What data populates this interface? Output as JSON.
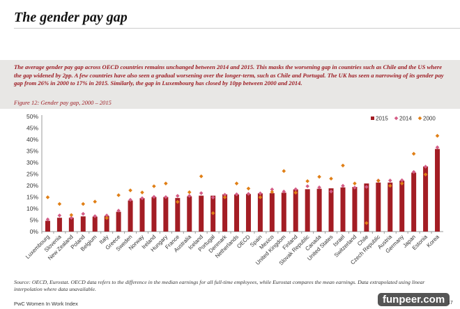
{
  "title": "The gender pay gap",
  "summary": "The average gender pay gap across OECD countries remains unchanged between 2014 and 2015. This masks the worsening gap in countries such as Chile and the US where the gap widened by 2pp. A few countries have also seen a gradual worsening over the longer-term, such as Chile and Portugal. The UK has seen a narrowing of its gender pay gap from 26% in 2000 to 17% in 2015. Similarly, the gap in Luxembourg has closed by 10pp between 2000 and 2014.",
  "figure_caption": "Figure 12: Gender pay gap, 2000 – 2015",
  "source": "Source: OECD, Eurostat. OECD data refers to the difference in the median earnings for all full-time employees, while Eurostat compares the mean earnings. Data extrapolated using linear interpolation where data unavailable.",
  "footer": "PwC Women In Work Index",
  "watermark": "funpeer.com",
  "year_fragment": "17",
  "chart_data": {
    "type": "bar",
    "title": "",
    "xlabel": "",
    "ylabel": "",
    "ylim": [
      0,
      50
    ],
    "yticks": [
      "0%",
      "5%",
      "10%",
      "15%",
      "20%",
      "25%",
      "30%",
      "35%",
      "40%",
      "45%",
      "50%"
    ],
    "grid": false,
    "legend_position": "top-right",
    "categories": [
      "Luxembourg",
      "Slovenia",
      "New Zealand",
      "Poland",
      "Belgium",
      "Italy",
      "Greece",
      "Sweden",
      "Norway",
      "Ireland",
      "Hungary",
      "France",
      "Australia",
      "Iceland",
      "Portugal",
      "Denmark",
      "Netherlands",
      "OECD",
      "Spain",
      "Mexico",
      "United Kingdom",
      "Finland",
      "Slovak Republic",
      "Canada",
      "United States",
      "Israel",
      "Switzerland",
      "Chile",
      "Czech Republic",
      "Austria",
      "Germany",
      "Japan",
      "Estonia",
      "Korea"
    ],
    "series": [
      {
        "name": "2015",
        "kind": "bar",
        "color": "#a31d24",
        "values": [
          4.7,
          6.0,
          6.0,
          6.6,
          6.5,
          6.8,
          8.6,
          13.5,
          14.5,
          15.0,
          15.0,
          14.6,
          15.3,
          15.6,
          15.6,
          16.2,
          16.1,
          16.3,
          16.6,
          16.7,
          16.9,
          18.3,
          18.4,
          18.6,
          18.8,
          19.2,
          19.4,
          20.9,
          21.3,
          21.3,
          22.1,
          25.6,
          28.3,
          35.9
        ]
      },
      {
        "name": "2014",
        "kind": "marker",
        "color": "#d45d86",
        "values": [
          5.3,
          7.0,
          6.0,
          7.7,
          6.7,
          7.0,
          9.1,
          13.8,
          14.5,
          15.1,
          15.0,
          15.5,
          15.5,
          16.7,
          14.8,
          16.0,
          16.2,
          16.4,
          16.6,
          18.3,
          17.4,
          18.4,
          19.7,
          19.2,
          17.4,
          19.9,
          19.1,
          19.4,
          22.2,
          22.2,
          22.3,
          25.9,
          28.2,
          36.6
        ]
      },
      {
        "name": "2000",
        "kind": "marker",
        "color": "#e07f16",
        "values": [
          14.9,
          12.0,
          7.2,
          12.0,
          13.0,
          5.9,
          15.8,
          17.9,
          17.0,
          19.7,
          20.9,
          12.9,
          17.1,
          24.0,
          8.0,
          14.9,
          20.9,
          18.7,
          14.9,
          17.2,
          26.3,
          16.9,
          21.9,
          23.8,
          23.0,
          28.7,
          20.9,
          3.7,
          22.1,
          19.9,
          20.9,
          33.8,
          24.8,
          41.6
        ]
      }
    ]
  }
}
